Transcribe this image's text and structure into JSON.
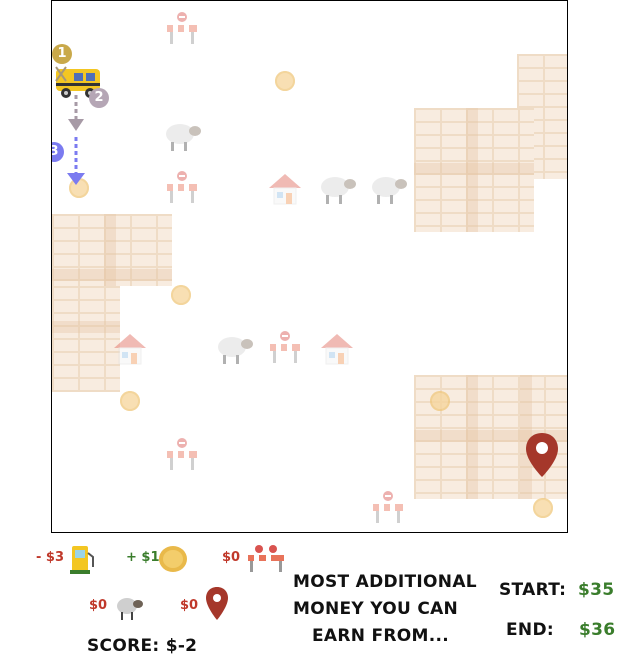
{
  "legend": {
    "fuel": {
      "value": "- $3",
      "icon": "fuel-pump-icon"
    },
    "coin": {
      "value": "+ $1",
      "icon": "coin-icon"
    },
    "barrier": {
      "value": "$0",
      "icon": "road-barrier-icon"
    },
    "sheep": {
      "value": "$0",
      "icon": "sheep-icon"
    },
    "destination": {
      "value": "$0",
      "icon": "map-pin-icon"
    }
  },
  "score": "SCORE: $-2",
  "question": [
    "MOST ADDITIONAL",
    "MONEY YOU CAN",
    "EARN FROM..."
  ],
  "start": {
    "label": "START:",
    "value": "$35"
  },
  "end": {
    "label": "END:",
    "value": "$36"
  },
  "path_markers": [
    "1",
    "2",
    "3"
  ],
  "colors": {
    "negative": "#c0392b",
    "positive": "#3a7d2c",
    "path": "#7b7bf0",
    "pin": "#a5372a"
  }
}
